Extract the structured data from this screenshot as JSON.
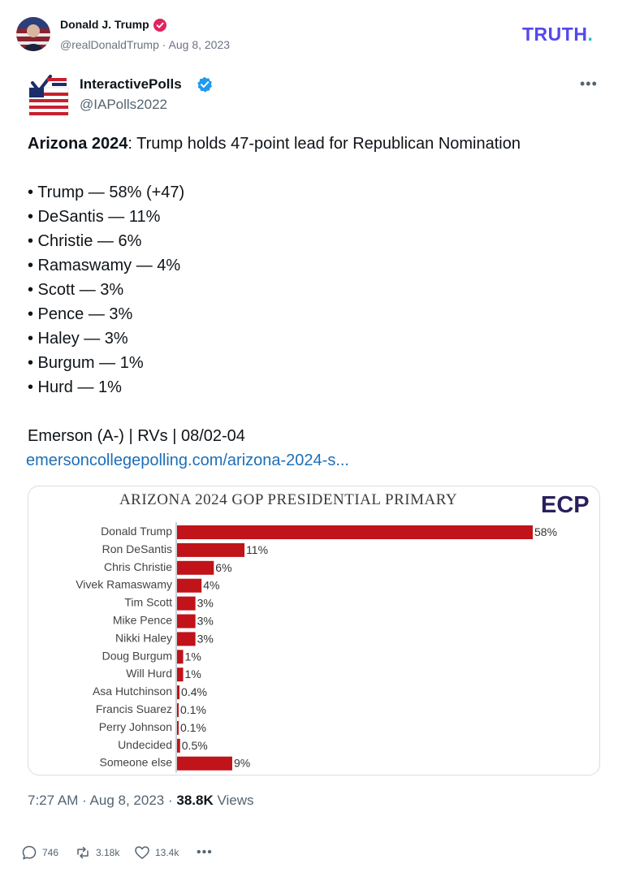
{
  "post": {
    "author": "Donald J. Trump",
    "handle": "@realDonaldTrump",
    "separator": " · ",
    "date": "Aug 8, 2023",
    "brand": "TRUTH",
    "brand_dot": ".",
    "colors": {
      "brand": "#5448ee",
      "brand_dot": "#19c2c9",
      "verified": "#e0245e"
    }
  },
  "tweet": {
    "author": "InteractivePolls",
    "handle": "@IAPolls2022",
    "headline_bold": "Arizona 2024",
    "headline_rest": ": Trump holds 47-point lead for Republican Nomination",
    "bullets": [
      "• Trump — 58% (+47)",
      "• DeSantis — 11%",
      "• Christie — 6%",
      "• Ramaswamy — 4%",
      "• Scott — 3%",
      "• Pence — 3%",
      "• Haley — 3%",
      "• Burgum — 1%",
      "• Hurd — 1%"
    ],
    "source": "Emerson (A-) | RVs | 08/02-04",
    "link": "emersoncollegepolling.com/arizona-2024-s...",
    "time": "7:27 AM",
    "date": "Aug 8, 2023",
    "views_count": "38.8K",
    "views_label": "Views",
    "colors": {
      "verified": "#1d9bf0",
      "link": "#1d6fb8"
    }
  },
  "actions": {
    "replies": "746",
    "retruths": "3.18k",
    "likes": "13.4k",
    "more": "•••"
  },
  "chart_data": {
    "type": "bar",
    "orientation": "horizontal",
    "title": "ARIZONA 2024 GOP PRESIDENTIAL PRIMARY",
    "logo_text": "ECP",
    "categories": [
      "Donald Trump",
      "Ron DeSantis",
      "Chris Christie",
      "Vivek Ramaswamy",
      "Tim Scott",
      "Mike Pence",
      "Nikki Haley",
      "Doug Burgum",
      "Will Hurd",
      "Asa Hutchinson",
      "Francis Suarez",
      "Perry Johnson",
      "Undecided",
      "Someone else"
    ],
    "values": [
      58,
      11,
      6,
      4,
      3,
      3,
      3,
      1,
      1,
      0.4,
      0.1,
      0.1,
      0.5,
      9
    ],
    "value_labels": [
      "58%",
      "11%",
      "6%",
      "4%",
      "3%",
      "3%",
      "3%",
      "1%",
      "1%",
      "0.4%",
      "0.1%",
      "0.1%",
      "0.5%",
      "9%"
    ],
    "xlim": [
      0,
      58
    ],
    "bar_color": "#c0131a",
    "grid": false
  }
}
